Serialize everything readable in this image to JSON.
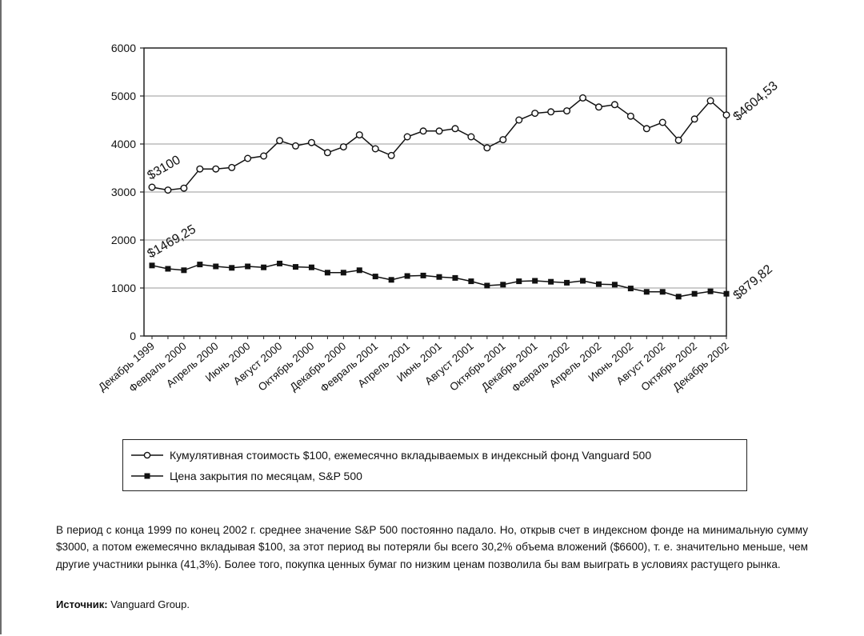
{
  "chart_data": {
    "type": "line",
    "title": "",
    "xlabel": "",
    "ylabel": "",
    "ylim": [
      0,
      6000
    ],
    "yticks": [
      0,
      1000,
      2000,
      3000,
      4000,
      5000,
      6000
    ],
    "grid": true,
    "legend_position": "bottom",
    "x_tick_labels": [
      "Декабрь 1999",
      "Февраль 2000",
      "Апрель 2000",
      "Июнь 2000",
      "Август 2000",
      "Октябрь 2000",
      "Декабрь 2000",
      "Февраль 2001",
      "Апрель 2001",
      "Июнь 2001",
      "Август 2001",
      "Октябрь 2001",
      "Декабрь 2001",
      "Февраль 2002",
      "Апрель 2002",
      "Июнь 2002",
      "Август 2002",
      "Октябрь 2002",
      "Декабрь 2002"
    ],
    "series": [
      {
        "name": "Кумулятивная стоимость $100, ежемесячно вкладываемых в индексный фонд Vanguard 500",
        "marker": "open-circle",
        "values": [
          3100,
          3040,
          3080,
          3480,
          3480,
          3510,
          3700,
          3750,
          4070,
          3960,
          4030,
          3820,
          3940,
          4190,
          3900,
          3760,
          4150,
          4270,
          4270,
          4320,
          4150,
          3920,
          4090,
          4500,
          4640,
          4670,
          4690,
          4960,
          4770,
          4820,
          4580,
          4320,
          4450,
          4080,
          4520,
          4900,
          4604.53
        ],
        "start_label": "$3100",
        "end_label": "$4604,53"
      },
      {
        "name": "Цена закрытия по месяцам, S&P 500",
        "marker": "filled-square",
        "values": [
          1469.25,
          1400,
          1370,
          1490,
          1450,
          1420,
          1450,
          1430,
          1510,
          1440,
          1430,
          1320,
          1320,
          1370,
          1240,
          1170,
          1250,
          1260,
          1230,
          1210,
          1140,
          1050,
          1070,
          1140,
          1150,
          1130,
          1110,
          1150,
          1080,
          1070,
          990,
          920,
          920,
          820,
          880,
          930,
          879.82
        ],
        "start_label": "$1469,25",
        "end_label": "$879,82"
      }
    ]
  },
  "caption": "В период с конца 1999 по конец 2002 г. среднее значение S&P 500 постоянно падало. Но, открыв счет в индексном фонде на минимальную сумму $3000, а потом ежемесячно вкладывая $100, за этот период вы потеряли бы всего 30,2% объема вложений ($6600), т. е. значительно меньше, чем другие участники рынка (41,3%). Более того, покупка ценных бумаг по низким ценам позволила бы вам выиграть в условиях растущего рынка.",
  "source": {
    "label": "Источник:",
    "text": " Vanguard Group."
  }
}
